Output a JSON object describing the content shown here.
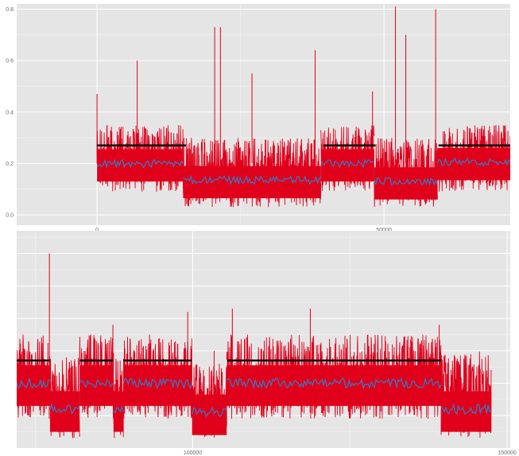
{
  "chart_data": [
    {
      "type": "line",
      "x_range": [
        -14000,
        72000
      ],
      "ylim": [
        -0.04,
        0.82
      ],
      "x_ticks": [
        0,
        50000
      ],
      "x_tick_labels": [
        "0",
        "50000"
      ],
      "y_ticks": [
        0.0,
        0.2,
        0.4,
        0.6,
        0.8
      ],
      "y_tick_labels": [
        "0.0",
        "0.2",
        "0.4",
        "0.6",
        "0.8"
      ],
      "grid": true,
      "colors": {
        "raw": "#e0001b",
        "smoothed": "#4472b8",
        "segment_mean": "#000000",
        "panel_bg": "#e5e5e5",
        "grid": "#ffffff"
      },
      "segment_means": [
        {
          "x_start": 0,
          "x_end": 15500,
          "y": 0.27
        },
        {
          "x_start": 39500,
          "x_end": 48500,
          "y": 0.27
        },
        {
          "x_start": 59500,
          "x_end": 72000,
          "y": 0.27
        }
      ],
      "regimes": [
        {
          "x_start": 0,
          "x_end": 15000,
          "center": 0.2,
          "low": 0.09,
          "high": 0.35
        },
        {
          "x_start": 15000,
          "x_end": 39000,
          "center": 0.135,
          "low": 0.03,
          "high": 0.3
        },
        {
          "x_start": 39000,
          "x_end": 48300,
          "center": 0.2,
          "low": 0.09,
          "high": 0.35
        },
        {
          "x_start": 48300,
          "x_end": 59300,
          "center": 0.13,
          "low": 0.03,
          "high": 0.3
        },
        {
          "x_start": 59300,
          "x_end": 72000,
          "center": 0.205,
          "low": 0.09,
          "high": 0.35
        }
      ],
      "spikes": [
        {
          "x": 0,
          "y": 0.47
        },
        {
          "x": 7000,
          "y": 0.6
        },
        {
          "x": 20500,
          "y": 0.73
        },
        {
          "x": 21500,
          "y": 0.73
        },
        {
          "x": 27000,
          "y": 0.55
        },
        {
          "x": 38000,
          "y": 0.64
        },
        {
          "x": 52000,
          "y": 0.81
        },
        {
          "x": 53800,
          "y": 0.7
        },
        {
          "x": 59000,
          "y": 0.8
        },
        {
          "x": 48000,
          "y": 0.48
        }
      ]
    },
    {
      "type": "line",
      "x_range": [
        72000,
        150500
      ],
      "x_ticks": [
        100000,
        150000
      ],
      "x_tick_labels": [
        "100000",
        "150000"
      ],
      "y_tick_labels": [],
      "grid": true,
      "colors": {
        "raw": "#e0001b",
        "smoothed": "#4472b8",
        "segment_mean": "#000000",
        "panel_bg": "#e5e5e5",
        "grid": "#ffffff"
      },
      "segment_means": [
        {
          "x_start": 72000,
          "x_end": 77300,
          "y": 0.27
        },
        {
          "x_start": 82000,
          "x_end": 87300,
          "y": 0.27
        },
        {
          "x_start": 89000,
          "x_end": 99800,
          "y": 0.27
        },
        {
          "x_start": 105500,
          "x_end": 139500,
          "y": 0.27
        }
      ],
      "regimes": [
        {
          "x_start": 72000,
          "x_end": 77300,
          "center": 0.2,
          "low": 0.09,
          "high": 0.35
        },
        {
          "x_start": 77300,
          "x_end": 82000,
          "center": 0.12,
          "low": 0.03,
          "high": 0.28
        },
        {
          "x_start": 82000,
          "x_end": 87400,
          "center": 0.2,
          "low": 0.09,
          "high": 0.35
        },
        {
          "x_start": 87400,
          "x_end": 89000,
          "center": 0.12,
          "low": 0.03,
          "high": 0.28
        },
        {
          "x_start": 89000,
          "x_end": 99900,
          "center": 0.2,
          "low": 0.09,
          "high": 0.35
        },
        {
          "x_start": 99900,
          "x_end": 105400,
          "center": 0.11,
          "low": 0.03,
          "high": 0.26
        },
        {
          "x_start": 105400,
          "x_end": 139500,
          "center": 0.2,
          "low": 0.09,
          "high": 0.35
        },
        {
          "x_start": 139500,
          "x_end": 147500,
          "center": 0.12,
          "low": 0.03,
          "high": 0.3
        }
      ],
      "spikes": [
        {
          "x": 77200,
          "y": 0.6
        },
        {
          "x": 87300,
          "y": 0.38
        },
        {
          "x": 99200,
          "y": 0.42
        },
        {
          "x": 103400,
          "y": 0.3
        },
        {
          "x": 106300,
          "y": 0.43
        },
        {
          "x": 118700,
          "y": 0.43
        },
        {
          "x": 139200,
          "y": 0.38
        }
      ]
    }
  ]
}
